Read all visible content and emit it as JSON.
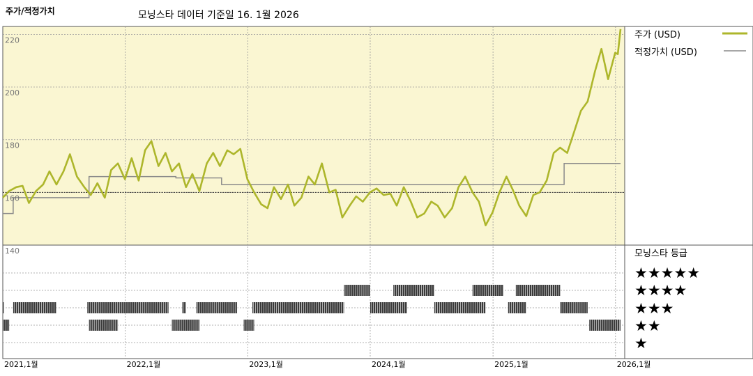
{
  "header": {
    "title": "주가/적정가치",
    "subtitle": "모닝스타 데이터 기준일 16. 1월 2026"
  },
  "legend": {
    "price_label": "주가 (USD)",
    "fair_label": "적정가치 (USD)",
    "rating_title": "모닝스타 등급",
    "stars": [
      "★★★★★",
      "★★★★",
      "★★★",
      "★★",
      "★"
    ]
  },
  "colors": {
    "price": "#adb62b",
    "fair": "#8a8a8a",
    "plot_bg": "#faf6d2",
    "rating_bar": "#3a3a3a"
  },
  "chart_data": {
    "type": "line",
    "x_range": [
      "2021-01-01",
      "2026-01-16"
    ],
    "y_range": [
      140,
      223
    ],
    "y_ticks": [
      140,
      160,
      180,
      200,
      220
    ],
    "x_ticks": [
      {
        "label": "2021,1월",
        "date": "2021-01-01"
      },
      {
        "label": "2022,1월",
        "date": "2022-01-01"
      },
      {
        "label": "2023,1월",
        "date": "2023-01-01"
      },
      {
        "label": "2024,1월",
        "date": "2024-01-01"
      },
      {
        "label": "2025,1월",
        "date": "2025-01-01"
      },
      {
        "label": "2026,1월",
        "date": "2026-01-01"
      }
    ],
    "reference_line": 160,
    "series": [
      {
        "name": "주가 (USD)",
        "points": [
          [
            "2021-01-01",
            158.0
          ],
          [
            "2021-01-20",
            160.5
          ],
          [
            "2021-02-10",
            162.0
          ],
          [
            "2021-03-01",
            162.5
          ],
          [
            "2021-03-20",
            156.0
          ],
          [
            "2021-04-10",
            160.5
          ],
          [
            "2021-05-01",
            163.0
          ],
          [
            "2021-05-20",
            168.0
          ],
          [
            "2021-06-10",
            163.0
          ],
          [
            "2021-07-01",
            168.0
          ],
          [
            "2021-07-20",
            174.5
          ],
          [
            "2021-08-10",
            166.0
          ],
          [
            "2021-09-01",
            162.0
          ],
          [
            "2021-09-20",
            159.0
          ],
          [
            "2021-10-10",
            163.5
          ],
          [
            "2021-11-01",
            158.0
          ],
          [
            "2021-11-20",
            168.5
          ],
          [
            "2021-12-10",
            171.0
          ],
          [
            "2021-12-31",
            165.0
          ],
          [
            "2022-01-20",
            173.0
          ],
          [
            "2022-02-10",
            164.5
          ],
          [
            "2022-03-01",
            176.0
          ],
          [
            "2022-03-20",
            179.5
          ],
          [
            "2022-04-10",
            170.0
          ],
          [
            "2022-05-01",
            175.0
          ],
          [
            "2022-05-20",
            168.0
          ],
          [
            "2022-06-10",
            171.0
          ],
          [
            "2022-07-01",
            162.0
          ],
          [
            "2022-07-20",
            167.0
          ],
          [
            "2022-08-10",
            160.5
          ],
          [
            "2022-09-01",
            171.0
          ],
          [
            "2022-09-20",
            175.0
          ],
          [
            "2022-10-10",
            170.0
          ],
          [
            "2022-11-01",
            176.0
          ],
          [
            "2022-11-20",
            174.5
          ],
          [
            "2022-12-10",
            176.5
          ],
          [
            "2022-12-31",
            165.0
          ],
          [
            "2023-01-20",
            160.0
          ],
          [
            "2023-02-10",
            155.5
          ],
          [
            "2023-03-01",
            154.0
          ],
          [
            "2023-03-20",
            162.0
          ],
          [
            "2023-04-10",
            157.5
          ],
          [
            "2023-05-01",
            163.0
          ],
          [
            "2023-05-20",
            155.0
          ],
          [
            "2023-06-10",
            158.0
          ],
          [
            "2023-07-01",
            166.0
          ],
          [
            "2023-07-20",
            163.0
          ],
          [
            "2023-08-10",
            171.0
          ],
          [
            "2023-09-01",
            160.0
          ],
          [
            "2023-09-20",
            161.0
          ],
          [
            "2023-10-10",
            150.5
          ],
          [
            "2023-11-01",
            155.0
          ],
          [
            "2023-11-20",
            158.5
          ],
          [
            "2023-12-10",
            156.5
          ],
          [
            "2023-12-31",
            160.0
          ],
          [
            "2024-01-20",
            161.5
          ],
          [
            "2024-02-10",
            159.0
          ],
          [
            "2024-03-01",
            159.5
          ],
          [
            "2024-03-20",
            155.0
          ],
          [
            "2024-04-10",
            162.0
          ],
          [
            "2024-05-01",
            156.5
          ],
          [
            "2024-05-20",
            150.5
          ],
          [
            "2024-06-10",
            152.0
          ],
          [
            "2024-07-01",
            156.5
          ],
          [
            "2024-07-20",
            155.0
          ],
          [
            "2024-08-10",
            150.5
          ],
          [
            "2024-09-01",
            154.0
          ],
          [
            "2024-09-20",
            162.0
          ],
          [
            "2024-10-10",
            166.0
          ],
          [
            "2024-11-01",
            160.0
          ],
          [
            "2024-11-20",
            156.5
          ],
          [
            "2024-12-10",
            147.5
          ],
          [
            "2024-12-31",
            152.5
          ],
          [
            "2025-01-20",
            160.0
          ],
          [
            "2025-02-10",
            166.0
          ],
          [
            "2025-03-01",
            161.0
          ],
          [
            "2025-03-20",
            155.0
          ],
          [
            "2025-04-10",
            151.0
          ],
          [
            "2025-05-01",
            159.0
          ],
          [
            "2025-05-20",
            160.0
          ],
          [
            "2025-06-10",
            164.5
          ],
          [
            "2025-07-01",
            175.0
          ],
          [
            "2025-07-20",
            177.0
          ],
          [
            "2025-08-10",
            175.0
          ],
          [
            "2025-09-01",
            183.5
          ],
          [
            "2025-09-20",
            191.0
          ],
          [
            "2025-10-10",
            194.5
          ],
          [
            "2025-11-01",
            206.0
          ],
          [
            "2025-11-20",
            214.5
          ],
          [
            "2025-12-10",
            203.0
          ],
          [
            "2025-12-31",
            213.0
          ],
          [
            "2026-01-08",
            212.5
          ],
          [
            "2026-01-16",
            222.0
          ]
        ]
      },
      {
        "name": "적정가치 (USD)",
        "points": [
          [
            "2021-01-01",
            152.0
          ],
          [
            "2021-02-01",
            152.0
          ],
          [
            "2021-02-01",
            158.0
          ],
          [
            "2021-09-15",
            158.0
          ],
          [
            "2021-09-15",
            166.0
          ],
          [
            "2022-06-01",
            166.0
          ],
          [
            "2022-06-01",
            165.5
          ],
          [
            "2022-10-15",
            165.5
          ],
          [
            "2022-10-15",
            163.0
          ],
          [
            "2025-08-01",
            163.0
          ],
          [
            "2025-08-01",
            171.0
          ],
          [
            "2026-01-16",
            171.0
          ]
        ]
      }
    ],
    "star_ratings": [
      {
        "stars": 5,
        "periods": []
      },
      {
        "stars": 4,
        "periods": [
          [
            "2023-10-15",
            "2024-01-01"
          ],
          [
            "2024-03-10",
            "2024-07-10"
          ],
          [
            "2024-11-01",
            "2025-02-01"
          ],
          [
            "2025-03-10",
            "2025-07-20"
          ]
        ]
      },
      {
        "stars": 3,
        "periods": [
          [
            "2021-01-01",
            "2021-01-05"
          ],
          [
            "2021-02-01",
            "2021-06-10"
          ],
          [
            "2021-09-10",
            "2022-05-10"
          ],
          [
            "2022-06-20",
            "2022-07-01"
          ],
          [
            "2022-08-01",
            "2022-12-01"
          ],
          [
            "2023-01-15",
            "2023-10-15"
          ],
          [
            "2024-01-01",
            "2024-04-20"
          ],
          [
            "2024-07-10",
            "2024-12-10"
          ],
          [
            "2025-02-15",
            "2025-04-10"
          ],
          [
            "2025-07-20",
            "2025-10-10"
          ]
        ]
      },
      {
        "stars": 2,
        "periods": [
          [
            "2021-01-01",
            "2021-01-20"
          ],
          [
            "2021-09-15",
            "2021-12-10"
          ],
          [
            "2022-05-20",
            "2022-08-10"
          ],
          [
            "2022-12-20",
            "2023-01-20"
          ],
          [
            "2025-10-15",
            "2026-01-16"
          ]
        ]
      },
      {
        "stars": 1,
        "periods": []
      }
    ]
  }
}
